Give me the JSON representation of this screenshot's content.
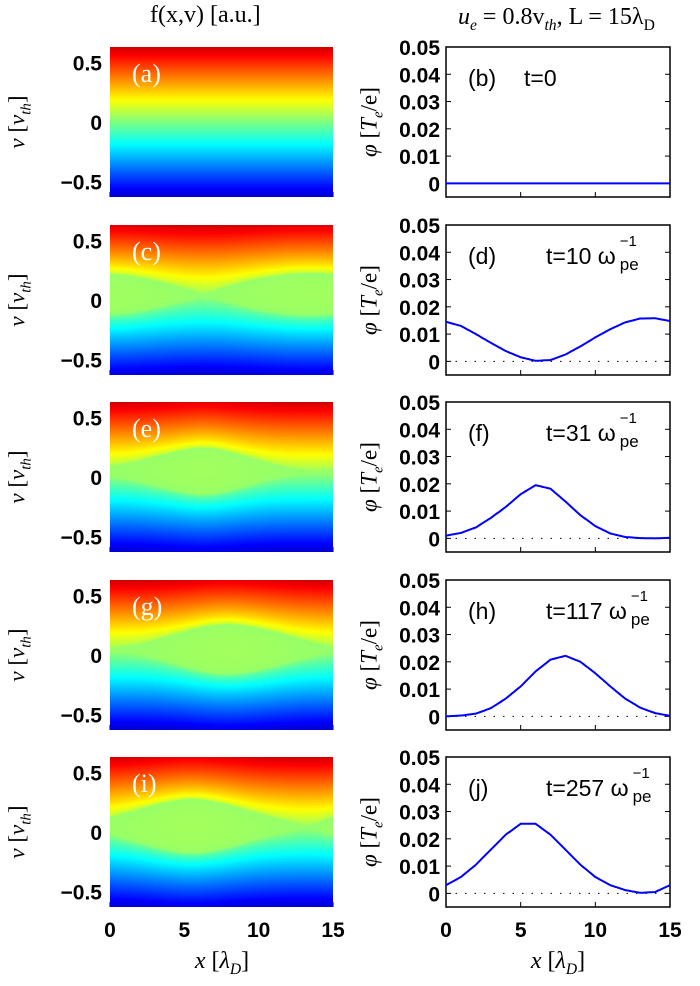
{
  "titles": {
    "left": "f(x,v) [a.u.]",
    "right_ue": "u",
    "right_ue_sub": "e",
    "right_rest": " = 0.8v",
    "right_vth_sub": "th",
    "right_L": ", L = 15λ",
    "right_L_sub": "D"
  },
  "labels": {
    "left_y_sym": "v",
    "left_y_unit": "v",
    "left_y_unit_sub": "th",
    "right_y_sym": "φ",
    "right_y_unit": "T",
    "right_y_unit_sub": "e",
    "right_y_unit_tail": "/e",
    "x_sym": "x",
    "x_unit": "λ",
    "x_unit_sub": "D",
    "omega": "ω",
    "omega_sup": "−1",
    "omega_sub": "pe"
  },
  "chart_data": [
    {
      "panel": "a",
      "type": "heatmap",
      "colormap": "jet",
      "xlim": [
        0,
        15
      ],
      "ylim": [
        -0.63,
        0.63
      ],
      "xticks": [
        "0",
        "5",
        "10",
        "15"
      ],
      "yticks": [
        "0.5",
        "0",
        "−0.5"
      ],
      "tag": "(a)",
      "trapping_from_panel": "b"
    },
    {
      "panel": "b",
      "type": "line",
      "tag": "(b)",
      "time": "t=0",
      "has_omega": false,
      "xlim": [
        0,
        15
      ],
      "ylim": [
        -0.005,
        0.05
      ],
      "yticks": [
        "0",
        "0.01",
        "0.02",
        "0.03",
        "0.04",
        "0.05"
      ],
      "xticks": [
        "0",
        "5",
        "10",
        "15"
      ],
      "color": "#0000ff",
      "x": [
        0,
        1,
        2,
        3,
        4,
        5,
        6,
        7,
        8,
        9,
        10,
        11,
        12,
        13,
        14,
        15
      ],
      "y": [
        0,
        0,
        0,
        0,
        0,
        0,
        0,
        0,
        0,
        0,
        0,
        0,
        0,
        0,
        0,
        0
      ]
    },
    {
      "panel": "c",
      "type": "heatmap",
      "colormap": "jet",
      "xlim": [
        0,
        15
      ],
      "ylim": [
        -0.63,
        0.63
      ],
      "xticks": [
        "0",
        "5",
        "10",
        "15"
      ],
      "yticks": [
        "0.5",
        "0",
        "−0.5"
      ],
      "tag": "(c)",
      "trapping_from_panel": "d"
    },
    {
      "panel": "d",
      "type": "line",
      "tag": "(d)",
      "time": "t=10 ",
      "has_omega": true,
      "xlim": [
        0,
        15
      ],
      "ylim": [
        -0.005,
        0.05
      ],
      "yticks": [
        "0",
        "0.01",
        "0.02",
        "0.03",
        "0.04",
        "0.05"
      ],
      "xticks": [
        "0",
        "5",
        "10",
        "15"
      ],
      "color": "#0000ff",
      "x": [
        0,
        1,
        2,
        3,
        4,
        5,
        6,
        7,
        8,
        9,
        10,
        11,
        12,
        13,
        14,
        15
      ],
      "y": [
        0.0145,
        0.013,
        0.01,
        0.0068,
        0.0038,
        0.0015,
        0.0002,
        0.0005,
        0.0025,
        0.0055,
        0.0088,
        0.0118,
        0.0143,
        0.0157,
        0.0158,
        0.0148
      ]
    },
    {
      "panel": "e",
      "type": "heatmap",
      "colormap": "jet",
      "xlim": [
        0,
        15
      ],
      "ylim": [
        -0.63,
        0.63
      ],
      "xticks": [
        "0",
        "5",
        "10",
        "15"
      ],
      "yticks": [
        "0.5",
        "0",
        "−0.5"
      ],
      "tag": "(e)",
      "trapping_from_panel": "f"
    },
    {
      "panel": "f",
      "type": "line",
      "tag": "(f)",
      "time": "t=31 ",
      "has_omega": true,
      "xlim": [
        0,
        15
      ],
      "ylim": [
        -0.005,
        0.05
      ],
      "yticks": [
        "0",
        "0.01",
        "0.02",
        "0.03",
        "0.04",
        "0.05"
      ],
      "xticks": [
        "0",
        "5",
        "10",
        "15"
      ],
      "color": "#0000ff",
      "x": [
        0,
        1,
        2,
        3,
        4,
        5,
        6,
        7,
        8,
        9,
        10,
        11,
        12,
        13,
        14,
        15
      ],
      "y": [
        0.001,
        0.002,
        0.004,
        0.0075,
        0.0115,
        0.0162,
        0.0195,
        0.0182,
        0.0135,
        0.0085,
        0.0045,
        0.0018,
        0.0005,
        0.0001,
        0.0,
        0.0002
      ]
    },
    {
      "panel": "g",
      "type": "heatmap",
      "colormap": "jet",
      "xlim": [
        0,
        15
      ],
      "ylim": [
        -0.63,
        0.63
      ],
      "xticks": [
        "0",
        "5",
        "10",
        "15"
      ],
      "yticks": [
        "0.5",
        "0",
        "−0.5"
      ],
      "tag": "(g)",
      "trapping_from_panel": "h"
    },
    {
      "panel": "h",
      "type": "line",
      "tag": "(h)",
      "time": "t=117 ",
      "has_omega": true,
      "xlim": [
        0,
        15
      ],
      "ylim": [
        -0.005,
        0.05
      ],
      "yticks": [
        "0",
        "0.01",
        "0.02",
        "0.03",
        "0.04",
        "0.05"
      ],
      "xticks": [
        "0",
        "5",
        "10",
        "15"
      ],
      "color": "#0000ff",
      "x": [
        0,
        1,
        2,
        3,
        4,
        5,
        6,
        7,
        8,
        9,
        10,
        11,
        12,
        13,
        14,
        15
      ],
      "y": [
        0.0,
        0.0003,
        0.001,
        0.003,
        0.0065,
        0.011,
        0.0165,
        0.0208,
        0.0222,
        0.02,
        0.0158,
        0.011,
        0.0065,
        0.0032,
        0.0012,
        0.0002
      ]
    },
    {
      "panel": "i",
      "type": "heatmap",
      "colormap": "jet",
      "xlim": [
        0,
        15
      ],
      "ylim": [
        -0.63,
        0.63
      ],
      "xticks": [
        "0",
        "5",
        "10",
        "15"
      ],
      "yticks": [
        "0.5",
        "0",
        "−0.5"
      ],
      "tag": "(i)",
      "trapping_from_panel": "j"
    },
    {
      "panel": "j",
      "type": "line",
      "tag": "(j)",
      "time": "t=257 ",
      "has_omega": true,
      "xlim": [
        0,
        15
      ],
      "ylim": [
        -0.005,
        0.05
      ],
      "yticks": [
        "0",
        "0.01",
        "0.02",
        "0.03",
        "0.04",
        "0.05"
      ],
      "xticks": [
        "0",
        "5",
        "10",
        "15"
      ],
      "color": "#0000ff",
      "x": [
        0,
        1,
        2,
        3,
        4,
        5,
        6,
        7,
        8,
        9,
        10,
        11,
        12,
        13,
        14,
        15
      ],
      "y": [
        0.003,
        0.006,
        0.0105,
        0.016,
        0.0215,
        0.0255,
        0.0255,
        0.0215,
        0.016,
        0.0105,
        0.006,
        0.003,
        0.0012,
        0.0002,
        0.0005,
        0.003
      ]
    }
  ]
}
